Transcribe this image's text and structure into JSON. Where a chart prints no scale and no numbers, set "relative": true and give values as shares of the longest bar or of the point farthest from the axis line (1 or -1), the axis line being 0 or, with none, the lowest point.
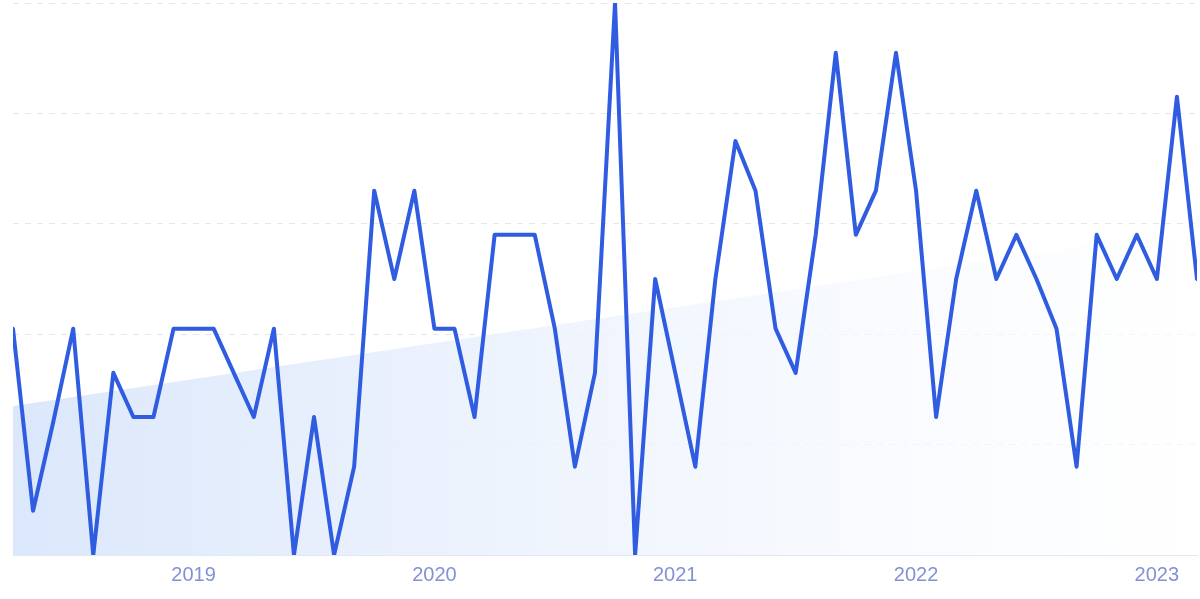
{
  "chart_data": {
    "type": "line",
    "relative": true,
    "x": [
      "2018-04",
      "2018-05",
      "2018-06",
      "2018-07",
      "2018-08",
      "2018-09",
      "2018-10",
      "2018-11",
      "2018-12",
      "2019-01",
      "2019-02",
      "2019-03",
      "2019-04",
      "2019-05",
      "2019-06",
      "2019-07",
      "2019-08",
      "2019-09",
      "2019-10",
      "2019-11",
      "2019-12",
      "2020-01",
      "2020-02",
      "2020-03",
      "2020-04",
      "2020-05",
      "2020-06",
      "2020-07",
      "2020-08",
      "2020-09",
      "2020-10",
      "2020-11",
      "2020-12",
      "2021-01",
      "2021-02",
      "2021-03",
      "2021-04",
      "2021-05",
      "2021-06",
      "2021-07",
      "2021-08",
      "2021-09",
      "2021-10",
      "2021-11",
      "2021-12",
      "2022-01",
      "2022-02",
      "2022-03",
      "2022-04",
      "2022-05",
      "2022-06",
      "2022-07",
      "2022-08",
      "2022-09",
      "2022-10",
      "2022-11",
      "2022-12",
      "2023-01",
      "2023-02",
      "2023-03"
    ],
    "series": [
      {
        "type": "area",
        "color": "#dbe7fb",
        "x": [
          "2018-04",
          "2023-03"
        ],
        "values": [
          0.27,
          0.59
        ]
      },
      {
        "type": "line",
        "color": "#2f5ce0",
        "values": [
          0.41,
          0.08,
          0.24,
          0.41,
          0,
          0.33,
          0.25,
          0.25,
          0.41,
          0.41,
          0.41,
          0.33,
          0.25,
          0.41,
          0,
          0.25,
          0,
          0.16,
          0.66,
          0.5,
          0.66,
          0.41,
          0.41,
          0.25,
          0.58,
          0.58,
          0.58,
          0.41,
          0.16,
          0.33,
          1,
          0,
          0.5,
          0.33,
          0.16,
          0.5,
          0.75,
          0.66,
          0.41,
          0.33,
          0.58,
          0.91,
          0.58,
          0.66,
          0.91,
          0.66,
          0.25,
          0.5,
          0.66,
          0.5,
          0.58,
          0.5,
          0.41,
          0.16,
          0.58,
          0.5,
          0.58,
          0.5,
          0.83,
          0.5
        ]
      }
    ],
    "xlim": [
      "2018-04",
      "2023-03"
    ],
    "xticks": [
      "2019",
      "2020",
      "2021",
      "2022",
      "2023"
    ],
    "grid": "y",
    "legend": false,
    "marker": "none",
    "line_style": "solid"
  }
}
